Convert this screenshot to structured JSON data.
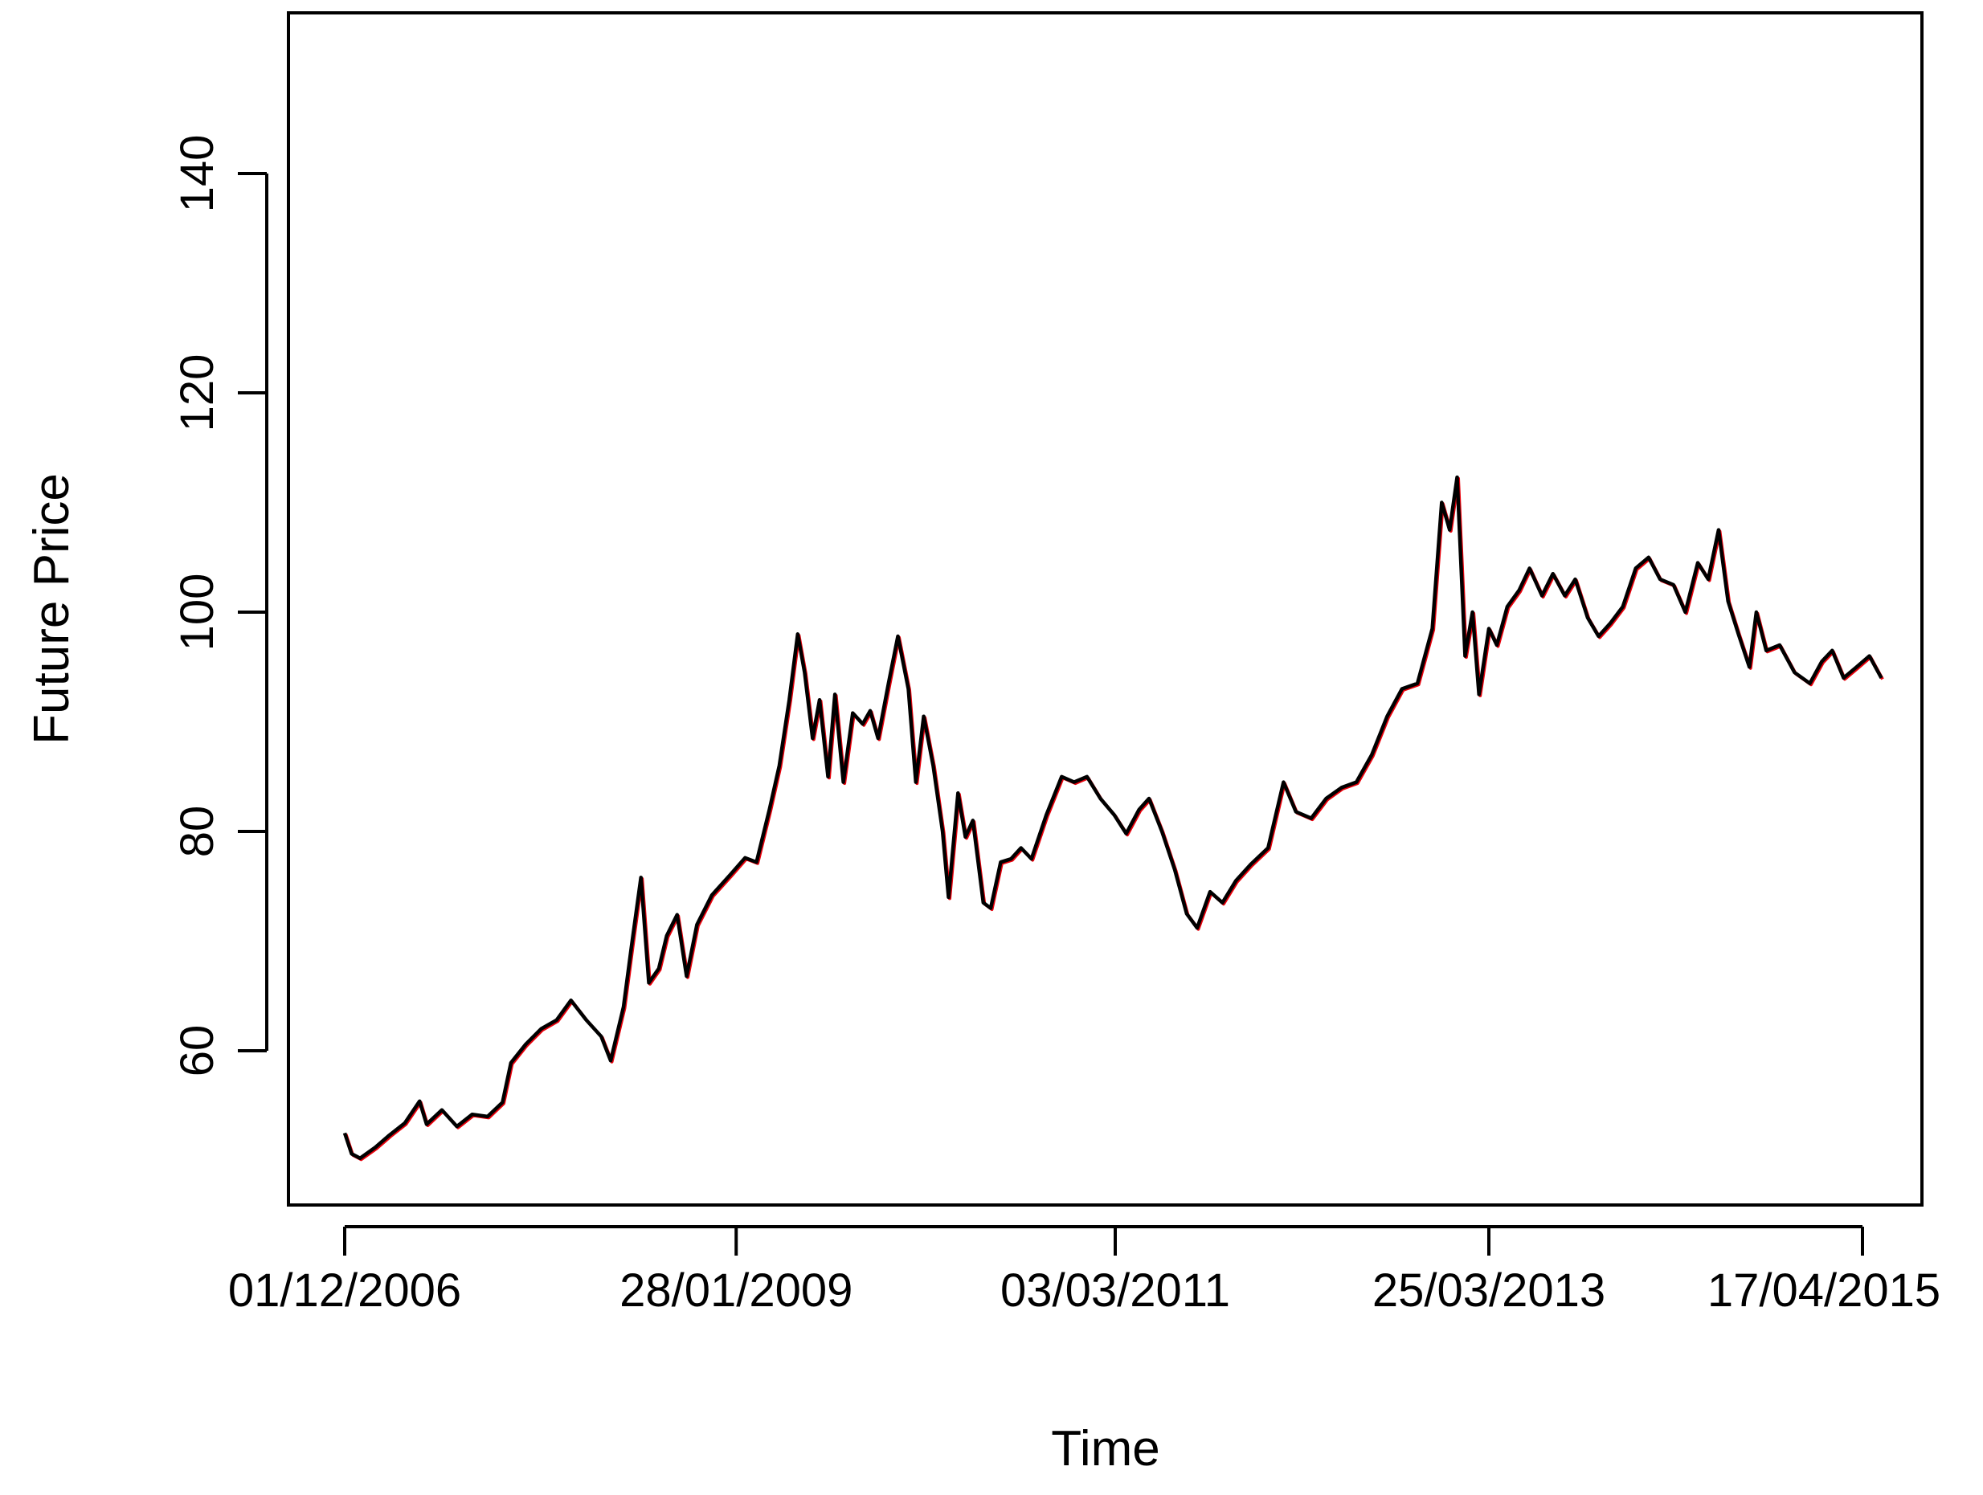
{
  "chart_data": {
    "type": "line",
    "title": "",
    "xlabel": "Time",
    "ylabel": "Future Price",
    "x_ticks": [
      "01/12/2006",
      "28/01/2009",
      "03/03/2011",
      "25/03/2013",
      "17/04/2015"
    ],
    "y_ticks": [
      60,
      80,
      100,
      120,
      140
    ],
    "xlim": [
      "2006-10-01",
      "2015-07-01"
    ],
    "ylim": [
      46,
      156
    ],
    "grid": false,
    "legend": "none",
    "colors": {
      "primary": "#000000",
      "shadow": "#e8000b"
    },
    "series": [
      {
        "values": [
          [
            "2006-12-01",
            52.5
          ],
          [
            "2006-12-15",
            50.6
          ],
          [
            "2007-01-01",
            50.2
          ],
          [
            "2007-02-01",
            51.2
          ],
          [
            "2007-03-01",
            52.3
          ],
          [
            "2007-04-01",
            53.4
          ],
          [
            "2007-05-01",
            55.4
          ],
          [
            "2007-05-15",
            53.3
          ],
          [
            "2007-06-15",
            54.6
          ],
          [
            "2007-07-15",
            53.1
          ],
          [
            "2007-08-15",
            54.2
          ],
          [
            "2007-09-15",
            54.0
          ],
          [
            "2007-10-15",
            55.3
          ],
          [
            "2007-11-01",
            58.9
          ],
          [
            "2007-12-01",
            60.6
          ],
          [
            "2008-01-01",
            62.0
          ],
          [
            "2008-02-01",
            62.8
          ],
          [
            "2008-03-01",
            64.6
          ],
          [
            "2008-04-01",
            62.8
          ],
          [
            "2008-05-01",
            61.3
          ],
          [
            "2008-05-20",
            59.1
          ],
          [
            "2008-06-15",
            64.0
          ],
          [
            "2008-07-01",
            69.5
          ],
          [
            "2008-07-20",
            75.8
          ],
          [
            "2008-08-05",
            66.2
          ],
          [
            "2008-08-25",
            67.5
          ],
          [
            "2008-09-10",
            70.5
          ],
          [
            "2008-10-01",
            72.4
          ],
          [
            "2008-10-20",
            66.8
          ],
          [
            "2008-11-10",
            71.5
          ],
          [
            "2008-12-10",
            74.2
          ],
          [
            "2009-01-15",
            76.0
          ],
          [
            "2009-02-15",
            77.6
          ],
          [
            "2009-03-10",
            77.2
          ],
          [
            "2009-04-05",
            82.0
          ],
          [
            "2009-04-25",
            86.0
          ],
          [
            "2009-05-15",
            92.0
          ],
          [
            "2009-06-01",
            98.0
          ],
          [
            "2009-06-15",
            94.5
          ],
          [
            "2009-07-01",
            88.5
          ],
          [
            "2009-07-15",
            92.0
          ],
          [
            "2009-08-01",
            85.0
          ],
          [
            "2009-08-15",
            92.5
          ],
          [
            "2009-09-01",
            84.5
          ],
          [
            "2009-09-20",
            90.8
          ],
          [
            "2009-10-10",
            89.8
          ],
          [
            "2009-10-25",
            91.0
          ],
          [
            "2009-11-10",
            88.5
          ],
          [
            "2009-12-01",
            93.5
          ],
          [
            "2009-12-20",
            97.8
          ],
          [
            "2010-01-10",
            93.0
          ],
          [
            "2010-01-25",
            84.5
          ],
          [
            "2010-02-10",
            90.5
          ],
          [
            "2010-03-01",
            86.0
          ],
          [
            "2010-03-20",
            80.0
          ],
          [
            "2010-04-01",
            74.0
          ],
          [
            "2010-04-20",
            83.5
          ],
          [
            "2010-05-05",
            79.5
          ],
          [
            "2010-05-20",
            81.0
          ],
          [
            "2010-06-10",
            73.5
          ],
          [
            "2010-06-25",
            73.0
          ],
          [
            "2010-07-15",
            77.2
          ],
          [
            "2010-08-05",
            77.5
          ],
          [
            "2010-08-25",
            78.5
          ],
          [
            "2010-09-15",
            77.5
          ],
          [
            "2010-10-15",
            81.5
          ],
          [
            "2010-11-15",
            85.0
          ],
          [
            "2010-12-10",
            84.5
          ],
          [
            "2011-01-05",
            85.0
          ],
          [
            "2011-02-01",
            83.0
          ],
          [
            "2011-03-01",
            81.5
          ],
          [
            "2011-03-25",
            79.8
          ],
          [
            "2011-04-20",
            82.0
          ],
          [
            "2011-05-10",
            83.0
          ],
          [
            "2011-06-05",
            80.0
          ],
          [
            "2011-07-01",
            76.5
          ],
          [
            "2011-07-25",
            72.5
          ],
          [
            "2011-08-15",
            71.2
          ],
          [
            "2011-09-10",
            74.5
          ],
          [
            "2011-10-05",
            73.5
          ],
          [
            "2011-11-01",
            75.5
          ],
          [
            "2011-12-01",
            77.0
          ],
          [
            "2012-01-05",
            78.5
          ],
          [
            "2012-02-05",
            84.5
          ],
          [
            "2012-03-01",
            81.8
          ],
          [
            "2012-04-01",
            81.2
          ],
          [
            "2012-05-01",
            83.0
          ],
          [
            "2012-06-01",
            84.0
          ],
          [
            "2012-07-01",
            84.5
          ],
          [
            "2012-08-01",
            87.0
          ],
          [
            "2012-09-01",
            90.5
          ],
          [
            "2012-10-01",
            93.0
          ],
          [
            "2012-11-01",
            93.5
          ],
          [
            "2012-12-01",
            98.5
          ],
          [
            "2012-12-20",
            110.0
          ],
          [
            "2013-01-05",
            107.5
          ],
          [
            "2013-01-20",
            112.3
          ],
          [
            "2013-02-05",
            96.0
          ],
          [
            "2013-02-20",
            100.0
          ],
          [
            "2013-03-05",
            92.5
          ],
          [
            "2013-03-25",
            98.5
          ],
          [
            "2013-04-10",
            97.0
          ],
          [
            "2013-05-01",
            100.5
          ],
          [
            "2013-05-25",
            102.0
          ],
          [
            "2013-06-15",
            104.0
          ],
          [
            "2013-07-10",
            101.5
          ],
          [
            "2013-08-01",
            103.5
          ],
          [
            "2013-08-25",
            101.5
          ],
          [
            "2013-09-15",
            103.0
          ],
          [
            "2013-10-10",
            99.5
          ],
          [
            "2013-11-01",
            97.8
          ],
          [
            "2013-11-25",
            99.0
          ],
          [
            "2013-12-20",
            100.5
          ],
          [
            "2014-01-15",
            104.0
          ],
          [
            "2014-02-10",
            105.0
          ],
          [
            "2014-03-05",
            103.0
          ],
          [
            "2014-04-01",
            102.5
          ],
          [
            "2014-04-25",
            100.0
          ],
          [
            "2014-05-20",
            104.5
          ],
          [
            "2014-06-10",
            103.0
          ],
          [
            "2014-07-01",
            107.5
          ],
          [
            "2014-07-20",
            101.0
          ],
          [
            "2014-08-10",
            98.0
          ],
          [
            "2014-09-01",
            95.0
          ],
          [
            "2014-09-15",
            100.0
          ],
          [
            "2014-10-05",
            96.5
          ],
          [
            "2014-11-01",
            97.0
          ],
          [
            "2014-12-01",
            94.5
          ],
          [
            "2015-01-01",
            93.5
          ],
          [
            "2015-01-25",
            95.5
          ],
          [
            "2015-02-15",
            96.5
          ],
          [
            "2015-03-10",
            94.0
          ],
          [
            "2015-04-05",
            95.0
          ],
          [
            "2015-05-01",
            96.0
          ],
          [
            "2015-05-25",
            94.0
          ]
        ]
      }
    ]
  }
}
